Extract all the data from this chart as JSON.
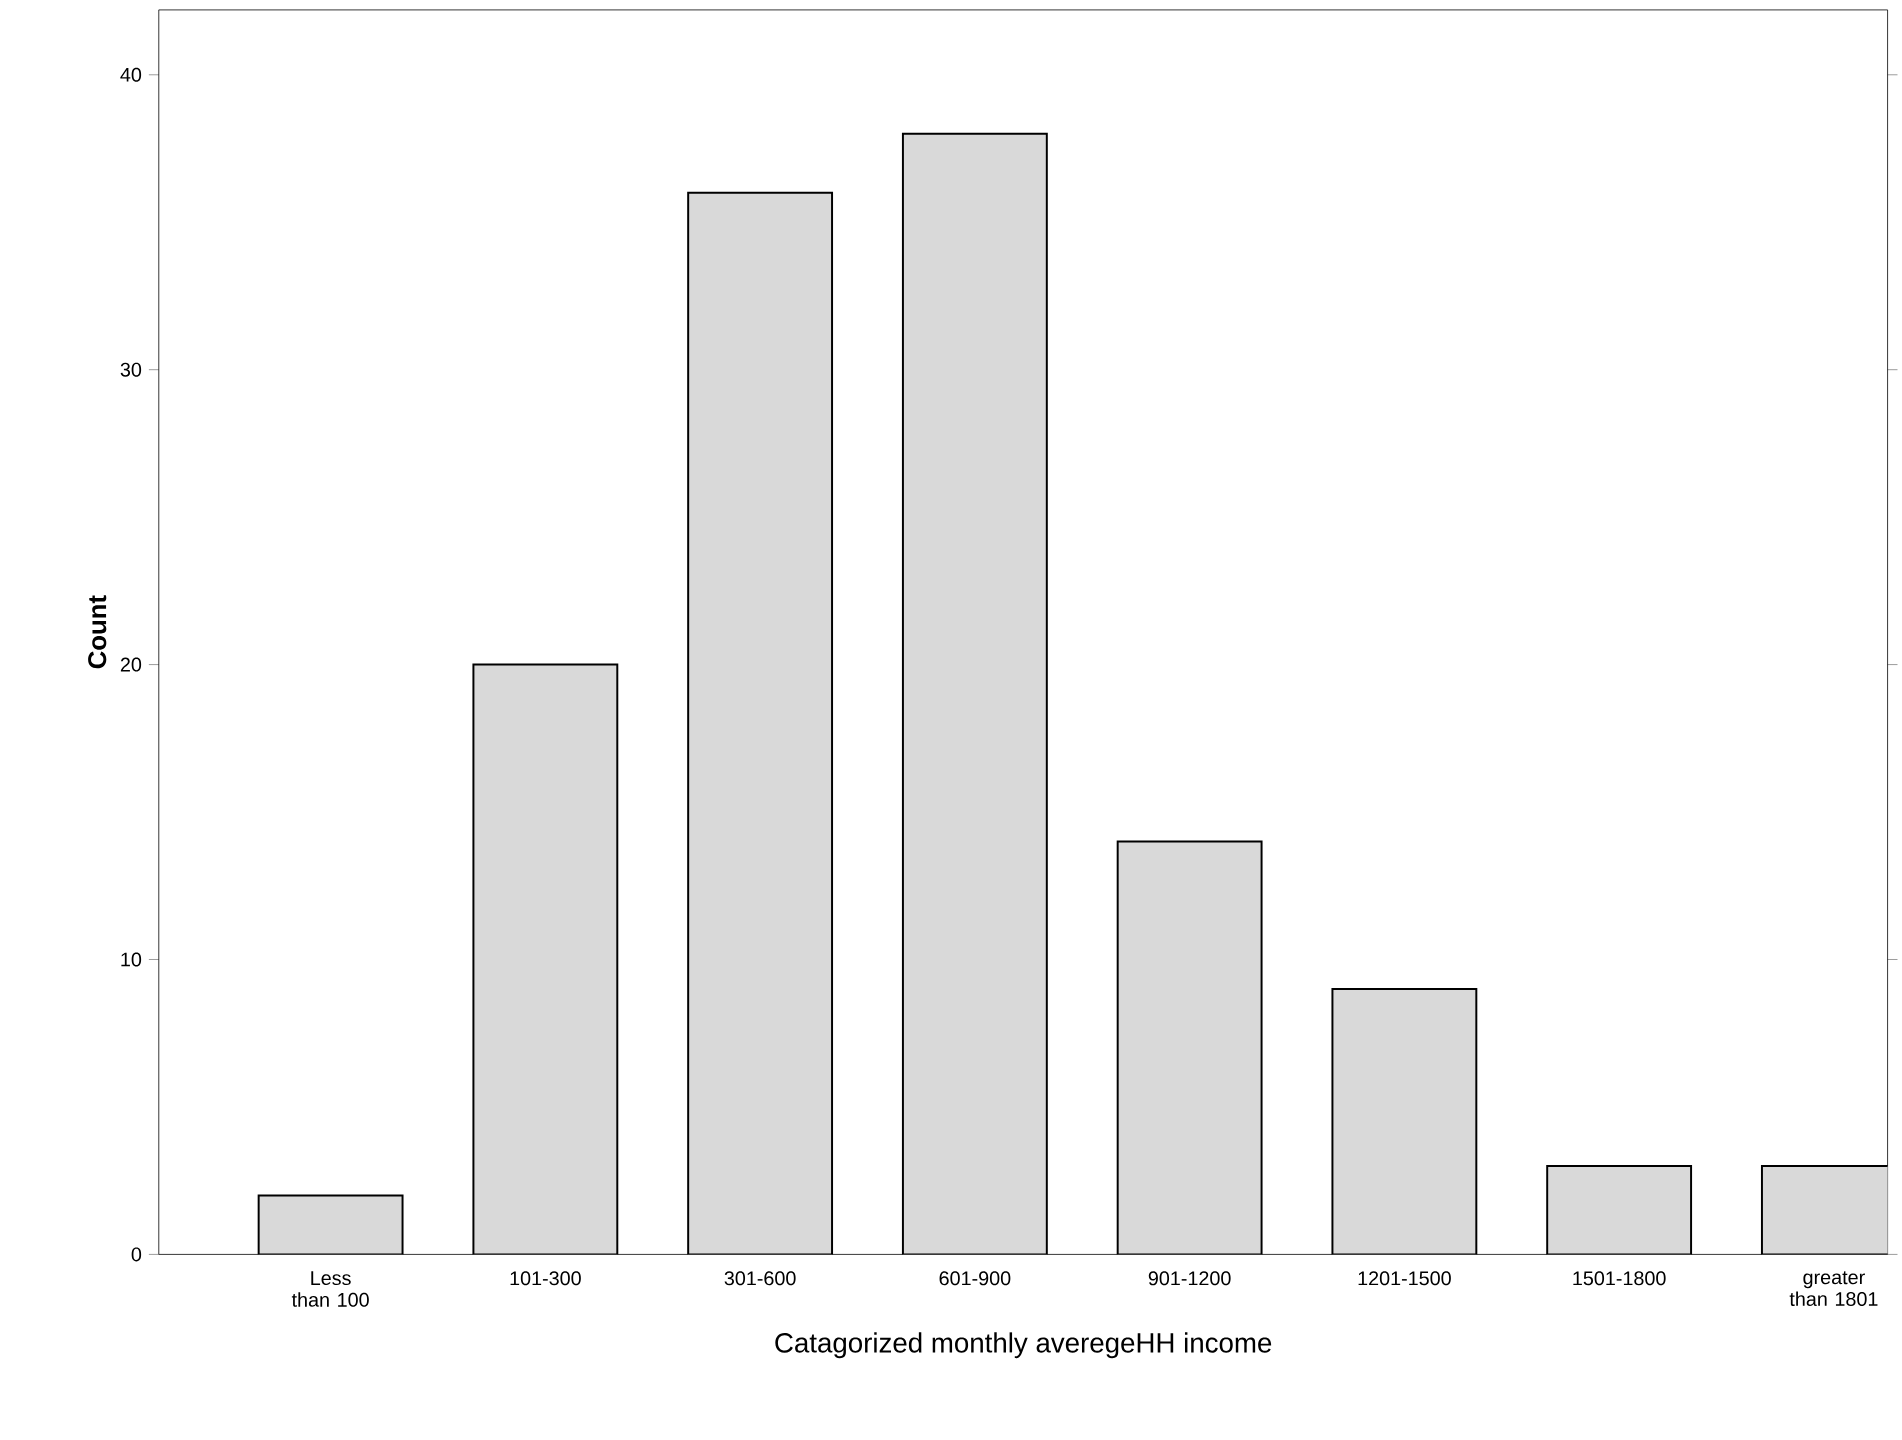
{
  "chart_data": {
    "type": "bar",
    "xlabel": "Catagorized monthly averegeHH income",
    "ylabel": "Count",
    "categories": [
      "Less than 100",
      "101-300",
      "301-600",
      "601-900",
      "901-1200",
      "1201-1500",
      "1501-1800",
      "greater than 1801"
    ],
    "values": [
      2,
      20,
      36,
      38,
      14,
      9,
      3,
      3
    ],
    "color": "#d9d9d9",
    "ylim": [
      0,
      42.2
    ],
    "yticks": [
      0,
      10,
      20,
      30,
      40
    ],
    "grid": false
  }
}
